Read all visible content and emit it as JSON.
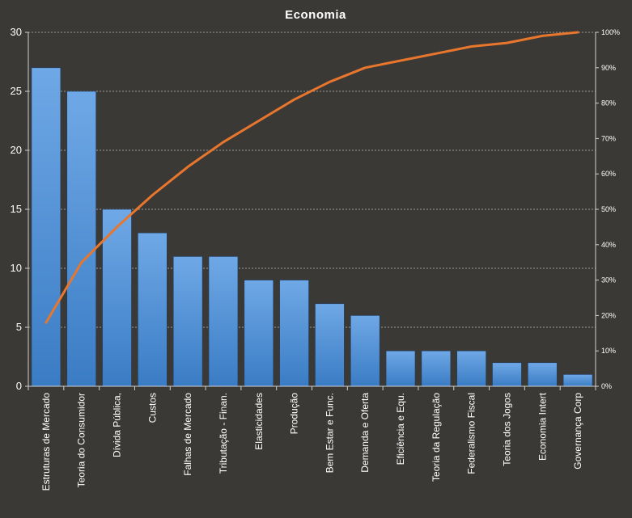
{
  "chart_data": {
    "type": "bar",
    "title": "Economia",
    "categories": [
      "Estruturas de Mercado",
      "Teoria do Consumidor",
      "Dívida Pública,",
      "Custos",
      "Falhas de Mercado",
      "Tributação - Finan.",
      "Elasticidades",
      "Produção",
      "Bem Estar e Func.",
      "Demanda e Oferta",
      "Eficiência e Equ.",
      "Teoria da Regulação",
      "Federalismo Fiscal",
      "Teoria dos Jogos",
      "Economia Intert",
      "Governança Corp"
    ],
    "series": [
      {
        "type": "bar",
        "axis": "left",
        "values": [
          27,
          25,
          15,
          13,
          11,
          11,
          9,
          9,
          7,
          6,
          3,
          3,
          3,
          2,
          2,
          1
        ],
        "color": "#4a90d9"
      },
      {
        "type": "line",
        "axis": "right",
        "values": [
          0.18,
          0.35,
          0.45,
          0.54,
          0.62,
          0.69,
          0.75,
          0.81,
          0.86,
          0.9,
          0.92,
          0.94,
          0.96,
          0.97,
          0.99,
          1.0
        ],
        "color": "#e8762d"
      }
    ],
    "ylim": [
      0,
      30
    ],
    "yticks": [
      "0",
      "5",
      "10",
      "15",
      "20",
      "25",
      "30"
    ],
    "y2lim": [
      0,
      1
    ],
    "y2ticks": [
      "0%",
      "10%",
      "20%",
      "30%",
      "40%",
      "50%",
      "60%",
      "70%",
      "80%",
      "90%",
      "100%"
    ],
    "grid": true,
    "xlabel": "",
    "ylabel": "",
    "legend": "none",
    "background": "#3b3936"
  }
}
